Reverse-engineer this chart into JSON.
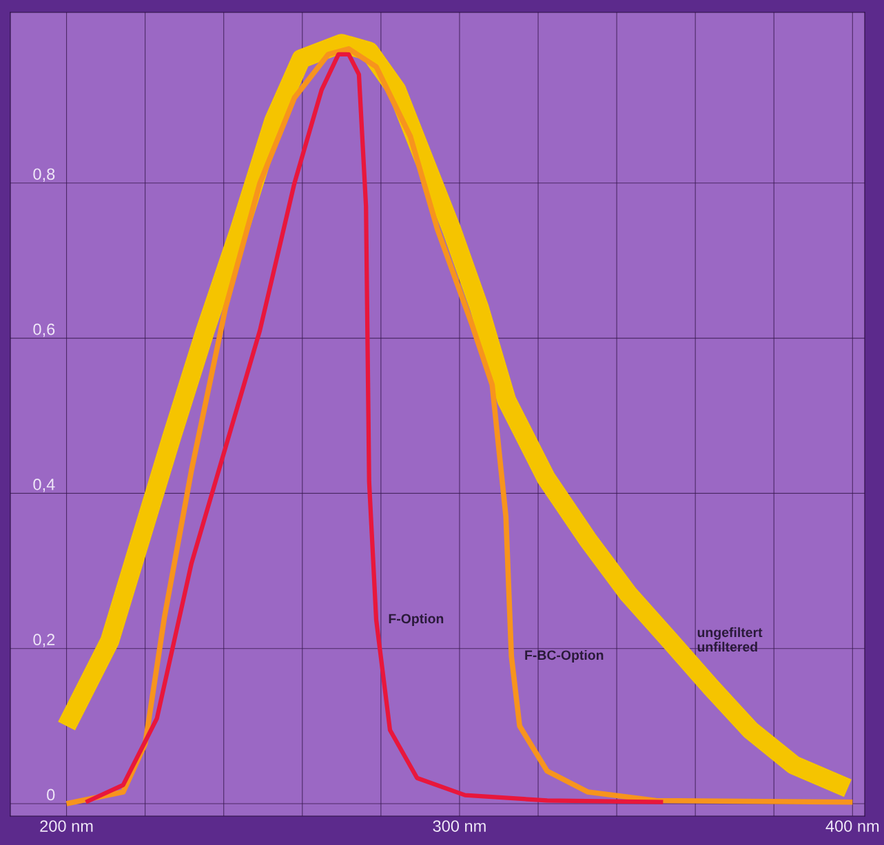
{
  "chart_data": {
    "type": "line",
    "xlim": [
      185.7,
      403.1
    ],
    "ylim": [
      -0.016,
      1.02
    ],
    "xticks": [
      {
        "value": 200,
        "label": "200 nm"
      },
      {
        "value": 220,
        "label": null
      },
      {
        "value": 240,
        "label": null
      },
      {
        "value": 260,
        "label": null
      },
      {
        "value": 280,
        "label": null
      },
      {
        "value": 300,
        "label": "300 nm"
      },
      {
        "value": 320,
        "label": null
      },
      {
        "value": 340,
        "label": null
      },
      {
        "value": 360,
        "label": null
      },
      {
        "value": 380,
        "label": null
      },
      {
        "value": 400,
        "label": "400 nm"
      }
    ],
    "yticks": [
      {
        "value": 0,
        "label": "0"
      },
      {
        "value": 0.2,
        "label": "0,2"
      },
      {
        "value": 0.4,
        "label": "0,4"
      },
      {
        "value": 0.6,
        "label": "0,6"
      },
      {
        "value": 0.8,
        "label": "0,8"
      }
    ],
    "grid": true,
    "marker": "none",
    "line_style": "solid",
    "series": [
      {
        "name": "ungefiltert\nunfiltered",
        "color": "#f5c400",
        "x": [
          200,
          204,
          211,
          220,
          226.6,
          235.3,
          244,
          252.7,
          259.7,
          270,
          277,
          284,
          291,
          298,
          305,
          312,
          322,
          332.7,
          343,
          353.6,
          364,
          374,
          385,
          398.8
        ],
        "values": [
          0.1,
          0.14,
          0.21,
          0.36,
          0.47,
          0.61,
          0.74,
          0.88,
          0.96,
          0.98,
          0.97,
          0.92,
          0.83,
          0.74,
          0.64,
          0.52,
          0.42,
          0.34,
          0.27,
          0.21,
          0.15,
          0.095,
          0.05,
          0.02
        ]
      },
      {
        "name": "F-BC-Option",
        "color": "#f7941d",
        "x": [
          200,
          214.4,
          220,
          224.9,
          231.8,
          240.5,
          249.2,
          258,
          266.6,
          271.8,
          278.8,
          287.5,
          294.4,
          303,
          308.3,
          311.8,
          313.2,
          315.3,
          322.3,
          332.7,
          350,
          400
        ],
        "values": [
          0.0,
          0.015,
          0.077,
          0.24,
          0.43,
          0.64,
          0.8,
          0.91,
          0.966,
          0.973,
          0.95,
          0.86,
          0.74,
          0.62,
          0.54,
          0.37,
          0.19,
          0.1,
          0.042,
          0.015,
          0.004,
          0.002
        ]
      },
      {
        "name": "F-Option",
        "color": "#e8173c",
        "x": [
          204.9,
          214.4,
          223,
          231.8,
          240.5,
          249.2,
          258,
          264.9,
          269.2,
          271.8,
          274.4,
          276.2,
          277,
          278.8,
          282.3,
          289.2,
          301.4,
          322.3,
          351.8
        ],
        "values": [
          0.002,
          0.024,
          0.11,
          0.31,
          0.46,
          0.61,
          0.8,
          0.92,
          0.966,
          0.966,
          0.94,
          0.77,
          0.415,
          0.237,
          0.095,
          0.033,
          0.011,
          0.004,
          0.002
        ]
      }
    ]
  }
}
